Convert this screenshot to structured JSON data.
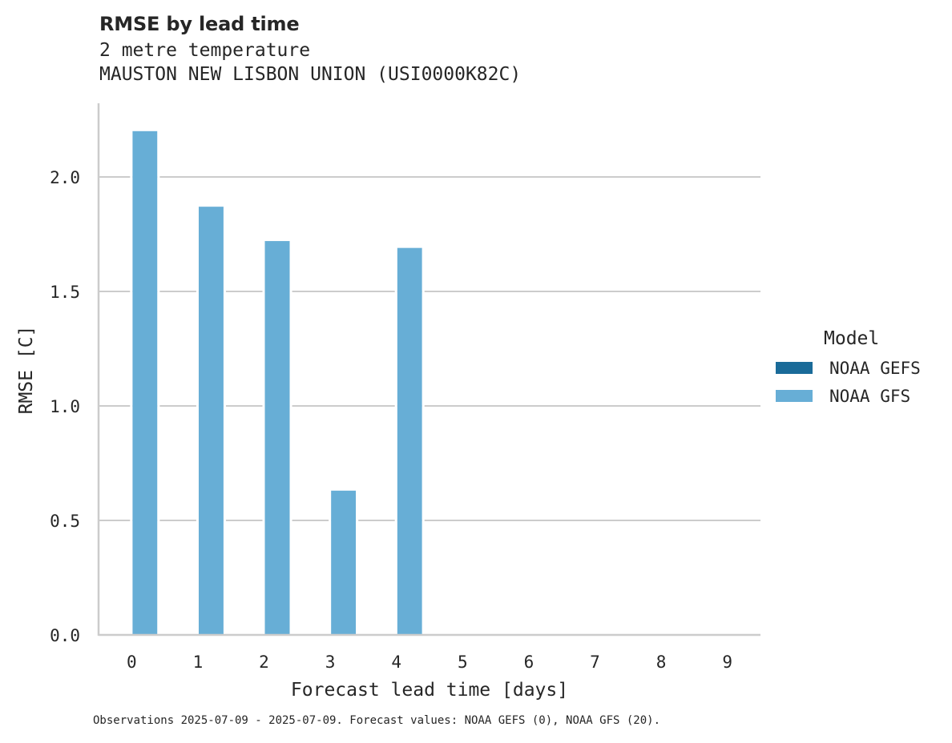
{
  "header": {
    "title": "RMSE by lead time",
    "subtitle_line1": "2 metre temperature",
    "subtitle_line2": "MAUSTON NEW LISBON UNION (USI0000K82C)"
  },
  "legend": {
    "title": "Model",
    "items": [
      {
        "label": "NOAA GEFS",
        "color": "#1a6b99"
      },
      {
        "label": "NOAA GFS",
        "color": "#67aed6"
      }
    ]
  },
  "footnote": "Observations 2025-07-09 - 2025-07-09. Forecast values: NOAA GEFS (0), NOAA GFS (20).",
  "colors": {
    "grid": "#cccccc",
    "axis": "#cccccc",
    "text": "#262626"
  },
  "chart_data": {
    "type": "bar",
    "title": "RMSE by lead time",
    "subtitle": "2 metre temperature — MAUSTON NEW LISBON UNION (USI0000K82C)",
    "xlabel": "Forecast lead time [days]",
    "ylabel": "RMSE [C]",
    "categories": [
      "0",
      "1",
      "2",
      "3",
      "4",
      "5",
      "6",
      "7",
      "8",
      "9"
    ],
    "series": [
      {
        "name": "NOAA GEFS",
        "color": "#1a6b99",
        "values": [
          null,
          null,
          null,
          null,
          null,
          null,
          null,
          null,
          null,
          null
        ]
      },
      {
        "name": "NOAA GFS",
        "color": "#67aed6",
        "values": [
          2.2,
          1.87,
          1.72,
          0.63,
          1.69,
          null,
          null,
          null,
          null,
          null
        ]
      }
    ],
    "yticks": [
      "0.0",
      "0.5",
      "1.0",
      "1.5",
      "2.0"
    ],
    "ylim": [
      0,
      2.32
    ],
    "grid": "horizontal",
    "legend_position": "right"
  }
}
